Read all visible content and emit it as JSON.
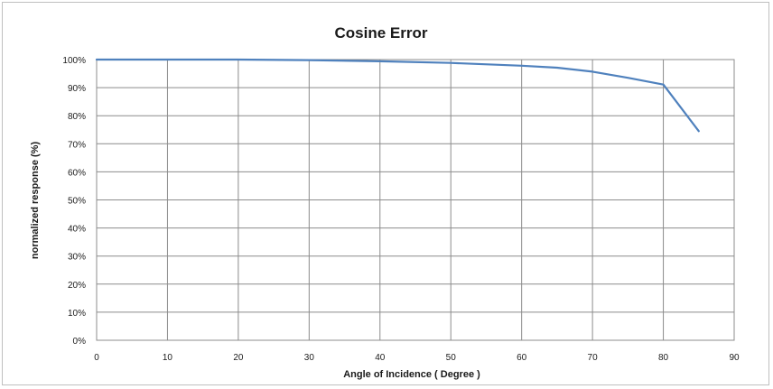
{
  "chart_data": {
    "type": "line",
    "title": "Cosine Error",
    "xlabel": "Angle of Incidence ( Degree )",
    "ylabel": "normalized response (%)",
    "xlim": [
      0,
      90
    ],
    "ylim": [
      0,
      100
    ],
    "x_ticks": [
      "0",
      "10",
      "20",
      "30",
      "40",
      "50",
      "60",
      "70",
      "80",
      "90"
    ],
    "y_ticks": [
      "0%",
      "10%",
      "20%",
      "30%",
      "40%",
      "50%",
      "60%",
      "70%",
      "80%",
      "90%",
      "100%"
    ],
    "grid": true,
    "legend": false,
    "series": [
      {
        "color": "#4f81bd",
        "x": [
          0,
          10,
          20,
          30,
          40,
          50,
          60,
          65,
          70,
          75,
          80,
          85
        ],
        "y": [
          100,
          100,
          100,
          99.8,
          99.4,
          98.8,
          97.8,
          97.1,
          95.7,
          93.5,
          91.1,
          74.5
        ]
      }
    ]
  }
}
